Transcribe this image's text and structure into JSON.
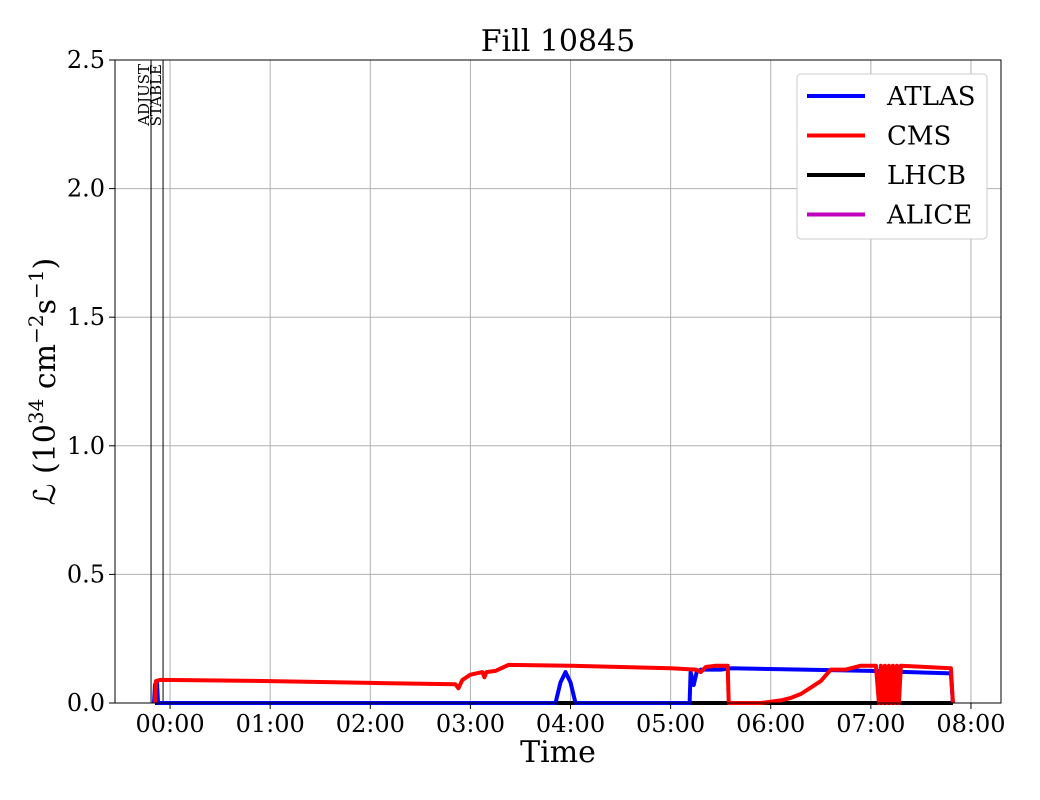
{
  "chart_data": {
    "type": "line",
    "title": "Fill 10845",
    "xlabel": "Time",
    "ylabel_main": "ℒ (10",
    "ylabel_sup1": "34",
    "ylabel_mid": " cm",
    "ylabel_sup2": "−2",
    "ylabel_s": "s",
    "ylabel_sup3": "−1",
    "ylabel_end": ")",
    "xlim_hours": [
      -0.55,
      8.3
    ],
    "ylim": [
      0,
      2.5
    ],
    "yticks": [
      0.0,
      0.5,
      1.0,
      1.5,
      2.0,
      2.5
    ],
    "ytick_labels": [
      "0.0",
      "0.5",
      "1.0",
      "1.5",
      "2.0",
      "2.5"
    ],
    "xticks": [
      0,
      1,
      2,
      3,
      4,
      5,
      6,
      7,
      8
    ],
    "xtick_labels": [
      "00:00",
      "01:00",
      "02:00",
      "03:00",
      "04:00",
      "05:00",
      "06:00",
      "07:00",
      "08:00"
    ],
    "grid": true,
    "legend_placement": "top-right",
    "markers": [
      {
        "label": "ADJUST",
        "x": -0.19
      },
      {
        "label": "STABLE",
        "x": -0.07
      }
    ],
    "series": [
      {
        "name": "ATLAS",
        "color": "#0000ff",
        "points": [
          [
            -0.16,
            0.0
          ],
          [
            -0.15,
            0.07
          ],
          [
            -0.14,
            0.08
          ],
          [
            -0.13,
            0.08
          ],
          [
            -0.12,
            0.0
          ],
          [
            -0.11,
            0.0
          ],
          [
            3.85,
            0.0
          ],
          [
            3.9,
            0.08
          ],
          [
            3.95,
            0.12
          ],
          [
            4.0,
            0.08
          ],
          [
            4.05,
            0.0
          ],
          [
            5.19,
            0.0
          ],
          [
            5.2,
            0.12
          ],
          [
            5.23,
            0.07
          ],
          [
            5.26,
            0.12
          ],
          [
            5.3,
            0.13
          ],
          [
            5.5,
            0.13
          ],
          [
            5.6,
            0.135
          ],
          [
            7.0,
            0.125
          ],
          [
            7.8,
            0.115
          ],
          [
            7.82,
            0.0
          ]
        ]
      },
      {
        "name": "CMS",
        "color": "#ff0000",
        "points": [
          [
            -0.15,
            0.0
          ],
          [
            -0.14,
            0.085
          ],
          [
            -0.1,
            0.09
          ],
          [
            1.0,
            0.085
          ],
          [
            2.0,
            0.078
          ],
          [
            2.85,
            0.073
          ],
          [
            2.88,
            0.057
          ],
          [
            2.92,
            0.09
          ],
          [
            3.0,
            0.11
          ],
          [
            3.12,
            0.12
          ],
          [
            3.14,
            0.1
          ],
          [
            3.16,
            0.12
          ],
          [
            3.25,
            0.125
          ],
          [
            3.38,
            0.148
          ],
          [
            4.0,
            0.145
          ],
          [
            5.0,
            0.135
          ],
          [
            5.25,
            0.13
          ],
          [
            5.3,
            0.12
          ],
          [
            5.35,
            0.14
          ],
          [
            5.45,
            0.145
          ],
          [
            5.57,
            0.145
          ],
          [
            5.58,
            0.0
          ],
          [
            5.9,
            0.0
          ],
          [
            6.1,
            0.01
          ],
          [
            6.2,
            0.02
          ],
          [
            6.3,
            0.035
          ],
          [
            6.4,
            0.06
          ],
          [
            6.5,
            0.085
          ],
          [
            6.6,
            0.13
          ],
          [
            6.75,
            0.13
          ],
          [
            6.9,
            0.145
          ],
          [
            7.05,
            0.145
          ],
          [
            7.08,
            0.0
          ],
          [
            7.1,
            0.145
          ],
          [
            7.12,
            0.0
          ],
          [
            7.14,
            0.145
          ],
          [
            7.16,
            0.0
          ],
          [
            7.18,
            0.145
          ],
          [
            7.2,
            0.0
          ],
          [
            7.22,
            0.145
          ],
          [
            7.24,
            0.0
          ],
          [
            7.26,
            0.145
          ],
          [
            7.28,
            0.0
          ],
          [
            7.3,
            0.145
          ],
          [
            7.8,
            0.135
          ],
          [
            7.82,
            0.0
          ]
        ]
      },
      {
        "name": "LHCB",
        "color": "#000000",
        "points": [
          [
            -0.15,
            0.0
          ],
          [
            7.82,
            0.0
          ]
        ]
      },
      {
        "name": "ALICE",
        "color": "#bf00bf",
        "points": [
          [
            -0.15,
            0.0
          ],
          [
            7.82,
            0.0
          ]
        ]
      }
    ]
  }
}
